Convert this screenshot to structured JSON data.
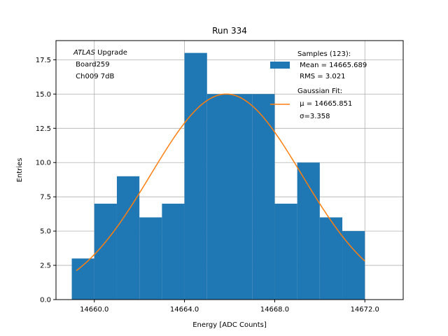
{
  "chart_data": {
    "type": "bar",
    "title": "Run 334",
    "xlabel": "Energy [ADC Counts]",
    "ylabel": "Entries",
    "xlim": [
      14658.3,
      14673.7
    ],
    "ylim": [
      0,
      18.9
    ],
    "x_ticks": [
      14660.0,
      14664.0,
      14668.0,
      14672.0
    ],
    "x_tick_labels": [
      "14660.0",
      "14664.0",
      "14668.0",
      "14672.0"
    ],
    "y_ticks": [
      0,
      2.5,
      5.0,
      7.5,
      10.0,
      12.5,
      15.0,
      17.5
    ],
    "y_tick_labels": [
      "0.0",
      "2.5",
      "5.0",
      "7.5",
      "10.0",
      "12.5",
      "15.0",
      "17.5"
    ],
    "grid": true,
    "legend_position": "top-right",
    "histogram": {
      "name": "Samples (123):",
      "color": "#1f77b4",
      "bin_edges": [
        14659.0,
        14660.0,
        14661.0,
        14662.0,
        14663.0,
        14664.0,
        14665.0,
        14666.0,
        14667.0,
        14668.0,
        14669.0,
        14670.0,
        14671.0,
        14672.0
      ],
      "counts": [
        3,
        7,
        9,
        6,
        7,
        18,
        15,
        15,
        15,
        7,
        10,
        6,
        5
      ]
    },
    "fit": {
      "name": "Gaussian Fit:",
      "color": "#ff7f0e",
      "mu": 14665.851,
      "sigma": 3.358,
      "amplitude": 15.0,
      "x_range": [
        14659.2,
        14672.0
      ]
    },
    "legend": [
      {
        "kind": "patch",
        "color": "#1f77b4",
        "lines": [
          "Samples (123):",
          " Mean = 14665.689",
          " RMS = 3.021"
        ]
      },
      {
        "kind": "line",
        "color": "#ff7f0e",
        "lines": [
          "Gaussian Fit:",
          " μ = 14665.851",
          " σ=3.358"
        ]
      }
    ],
    "annotation": {
      "italic": "ATLAS",
      "rest": " Upgrade",
      "lines": [
        " Board259",
        " Ch009 7dB"
      ]
    }
  }
}
